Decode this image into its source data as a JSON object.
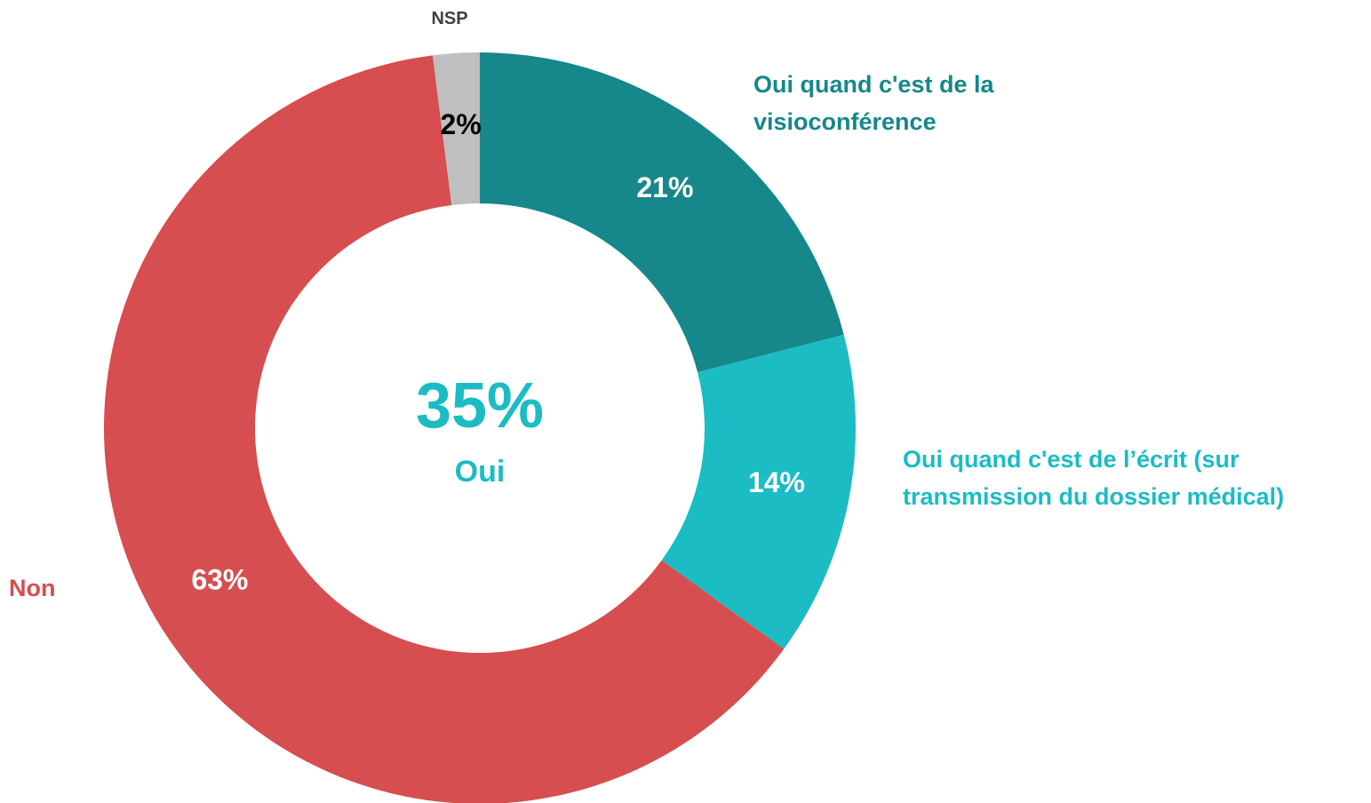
{
  "chart_data": {
    "type": "donut",
    "categories": [
      "Oui quand c'est de la visioconférence",
      "Oui quand c'est de l’écrit (sur transmission du dossier médical)",
      "Non",
      "NSP"
    ],
    "values": [
      21,
      14,
      63,
      2
    ],
    "value_labels": [
      "21%",
      "14%",
      "63%",
      "2%"
    ],
    "colors": [
      "#16878b",
      "#1bbcc4",
      "#d64e4f",
      "#bfbfbf"
    ],
    "center": {
      "value": 35,
      "label": "35%",
      "caption": "Oui"
    }
  }
}
